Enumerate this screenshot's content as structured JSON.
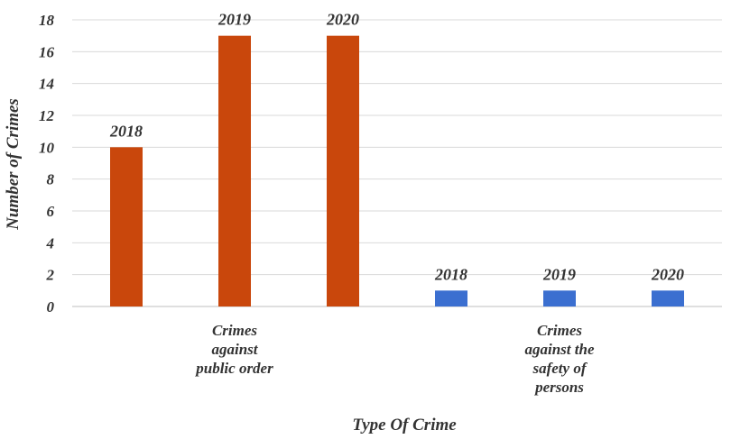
{
  "chart_data": {
    "type": "bar",
    "xlabel": "Type Of Crime",
    "ylabel": "Number of Crimes",
    "ylim": [
      0,
      18
    ],
    "yticks": [
      0,
      2,
      4,
      6,
      8,
      10,
      12,
      14,
      16,
      18
    ],
    "grid": true,
    "legend": "none",
    "groups": [
      {
        "category_lines": [
          "Crimes",
          "against",
          "public order"
        ],
        "color": "#C9470C",
        "bars": [
          {
            "label": "2018",
            "value": 10
          },
          {
            "label": "2019",
            "value": 17
          },
          {
            "label": "2020",
            "value": 17
          }
        ]
      },
      {
        "category_lines": [
          "Crimes",
          "against the",
          "safety of",
          "persons"
        ],
        "color": "#3B6FD0",
        "bars": [
          {
            "label": "2018",
            "value": 1
          },
          {
            "label": "2019",
            "value": 1
          },
          {
            "label": "2020",
            "value": 1
          }
        ]
      }
    ]
  }
}
